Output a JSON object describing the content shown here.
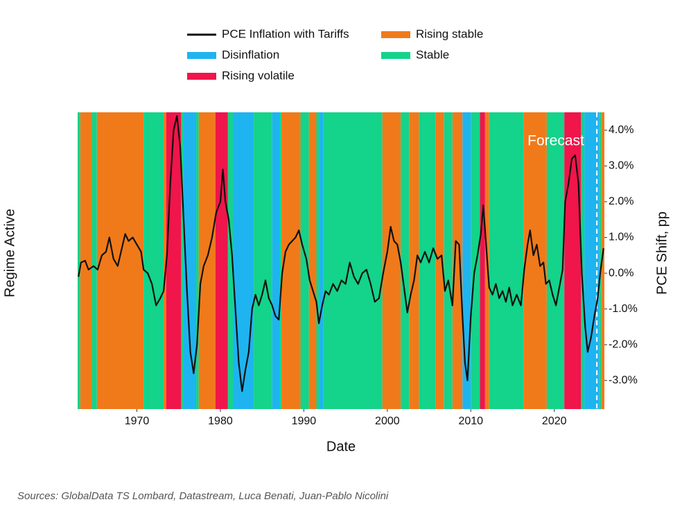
{
  "chart_data": {
    "type": "regime-line",
    "x_label": "Date",
    "y_label": "Regime Active",
    "y2_label": "PCE Shift, pp",
    "source": "Sources: GlobalData TS Lombard, Datastream, Luca Benati, Juan-Pablo Nicolini",
    "xlim": [
      1962.9,
      2026.0
    ],
    "xticks": [
      1970,
      1980,
      1990,
      2000,
      2010,
      2020
    ],
    "y2lim": [
      -3.8,
      4.5
    ],
    "y2ticks": [
      {
        "value": -3,
        "label": "-3.0%"
      },
      {
        "value": -2,
        "label": "-2.0%"
      },
      {
        "value": -1,
        "label": "-1.0%"
      },
      {
        "value": 0,
        "label": "0.0%"
      },
      {
        "value": 1,
        "label": "1.0%"
      },
      {
        "value": 2,
        "label": "2.0%"
      },
      {
        "value": 3,
        "label": "3.0%"
      },
      {
        "value": 4,
        "label": "4.0%"
      }
    ],
    "forecast": {
      "label": "Forecast",
      "x": 2025.1
    },
    "series": [
      {
        "name": "PCE Inflation with Tariffs",
        "color": "#111111",
        "axis": "y2",
        "x": [
          1963.0,
          1963.3,
          1963.8,
          1964.2,
          1964.8,
          1965.3,
          1965.8,
          1966.3,
          1966.7,
          1967.2,
          1967.7,
          1968.2,
          1968.6,
          1969.0,
          1969.5,
          1970.0,
          1970.5,
          1970.8,
          1971.3,
          1971.8,
          1972.3,
          1972.8,
          1973.2,
          1973.6,
          1974.0,
          1974.4,
          1974.8,
          1975.2,
          1975.6,
          1976.0,
          1976.4,
          1976.8,
          1977.2,
          1977.6,
          1978.0,
          1978.5,
          1979.0,
          1979.5,
          1980.0,
          1980.3,
          1980.6,
          1981.0,
          1981.4,
          1981.8,
          1982.2,
          1982.6,
          1983.0,
          1983.4,
          1983.8,
          1984.2,
          1984.6,
          1985.0,
          1985.4,
          1985.8,
          1986.2,
          1986.6,
          1987.0,
          1987.4,
          1987.8,
          1988.2,
          1988.6,
          1989.0,
          1989.4,
          1989.8,
          1990.3,
          1990.7,
          1991.1,
          1991.5,
          1991.8,
          1992.2,
          1992.6,
          1993.0,
          1993.5,
          1994.0,
          1994.5,
          1995.0,
          1995.5,
          1996.0,
          1996.5,
          1997.0,
          1997.5,
          1998.0,
          1998.5,
          1999.0,
          1999.5,
          2000.0,
          2000.4,
          2000.8,
          2001.2,
          2001.6,
          2002.0,
          2002.4,
          2002.8,
          2003.2,
          2003.6,
          2004.0,
          2004.5,
          2005.0,
          2005.5,
          2006.0,
          2006.5,
          2006.9,
          2007.3,
          2007.8,
          2008.2,
          2008.6,
          2009.0,
          2009.3,
          2009.6,
          2010.0,
          2010.4,
          2010.8,
          2011.2,
          2011.5,
          2011.8,
          2012.2,
          2012.6,
          2013.0,
          2013.4,
          2013.8,
          2014.2,
          2014.6,
          2015.0,
          2015.5,
          2016.0,
          2016.4,
          2016.8,
          2017.1,
          2017.5,
          2017.9,
          2018.3,
          2018.7,
          2019.0,
          2019.4,
          2019.8,
          2020.2,
          2020.6,
          2021.0,
          2021.3,
          2021.7,
          2022.1,
          2022.5,
          2022.9,
          2023.3,
          2023.7,
          2024.0,
          2024.4,
          2024.8,
          2025.2,
          2025.5,
          2025.9
        ],
        "values": [
          -0.1,
          0.3,
          0.35,
          0.1,
          0.2,
          0.1,
          0.5,
          0.6,
          1.0,
          0.4,
          0.2,
          0.7,
          1.1,
          0.9,
          1.0,
          0.8,
          0.6,
          0.1,
          0.0,
          -0.3,
          -0.9,
          -0.7,
          -0.5,
          0.5,
          2.5,
          4.0,
          4.4,
          3.5,
          1.5,
          -0.5,
          -2.2,
          -2.8,
          -2.0,
          -0.3,
          0.2,
          0.5,
          1.0,
          1.7,
          2.0,
          2.9,
          2.0,
          1.5,
          0.5,
          -1.0,
          -2.5,
          -3.3,
          -2.7,
          -2.2,
          -1.0,
          -0.6,
          -0.9,
          -0.6,
          -0.2,
          -0.7,
          -0.9,
          -1.2,
          -1.3,
          0.0,
          0.6,
          0.8,
          0.9,
          1.0,
          1.2,
          0.8,
          0.4,
          -0.2,
          -0.5,
          -0.8,
          -1.4,
          -0.9,
          -0.5,
          -0.6,
          -0.3,
          -0.5,
          -0.2,
          -0.3,
          0.3,
          -0.1,
          -0.3,
          0.0,
          0.1,
          -0.3,
          -0.8,
          -0.7,
          0.0,
          0.6,
          1.3,
          0.9,
          0.8,
          0.3,
          -0.4,
          -1.1,
          -0.6,
          -0.2,
          0.5,
          0.3,
          0.6,
          0.3,
          0.7,
          0.4,
          0.5,
          -0.5,
          -0.2,
          -0.9,
          0.9,
          0.8,
          -1.2,
          -2.5,
          -3.0,
          -1.2,
          0.0,
          0.5,
          1.1,
          1.9,
          0.9,
          -0.4,
          -0.6,
          -0.3,
          -0.7,
          -0.5,
          -0.8,
          -0.4,
          -0.9,
          -0.6,
          -0.9,
          0.1,
          0.8,
          1.2,
          0.5,
          0.8,
          0.2,
          0.3,
          -0.3,
          -0.2,
          -0.6,
          -0.9,
          -0.4,
          0.1,
          2.0,
          2.5,
          3.2,
          3.3,
          2.5,
          0.0,
          -1.5,
          -2.2,
          -1.8,
          -1.2,
          -0.7,
          0.0,
          0.7
        ]
      }
    ],
    "regimes": [
      {
        "name": "Rising stable",
        "color": "#f07a1a",
        "periods": [
          [
            1963.2,
            1963.4
          ],
          [
            1963.4,
            1964.6
          ],
          [
            1965.2,
            1970.8
          ],
          [
            1973.2,
            1973.5
          ],
          [
            1977.4,
            1979.4
          ],
          [
            1987.3,
            1989.6
          ],
          [
            1990.6,
            1991.5
          ],
          [
            1999.4,
            2001.6
          ],
          [
            2002.6,
            2003.8
          ],
          [
            2005.8,
            2006.8
          ],
          [
            2007.8,
            2009.0
          ],
          [
            2011.7,
            2012.2
          ],
          [
            2016.3,
            2019.1
          ],
          [
            2025.6,
            2026.0
          ]
        ]
      },
      {
        "name": "Disinflation",
        "color": "#1eb4f0",
        "periods": [
          [
            1975.6,
            1977.1
          ],
          [
            1981.5,
            1984.0
          ],
          [
            1986.2,
            1987.1
          ],
          [
            1991.8,
            1992.3
          ],
          [
            2009.0,
            2010.0
          ],
          [
            2023.6,
            2025.4
          ]
        ]
      },
      {
        "name": "Stable",
        "color": "#14d38a",
        "periods": [
          [
            1962.9,
            1963.2
          ],
          [
            1964.6,
            1965.2
          ],
          [
            1970.8,
            1973.2
          ],
          [
            1975.3,
            1975.6
          ],
          [
            1977.1,
            1977.4
          ],
          [
            1980.9,
            1981.5
          ],
          [
            1984.0,
            1986.2
          ],
          [
            1987.1,
            1987.3
          ],
          [
            1989.6,
            1990.6
          ],
          [
            1991.5,
            1991.8
          ],
          [
            1992.3,
            1999.4
          ],
          [
            2001.6,
            2002.6
          ],
          [
            2003.8,
            2005.8
          ],
          [
            2006.8,
            2007.8
          ],
          [
            2010.0,
            2011.1
          ],
          [
            2012.2,
            2016.3
          ],
          [
            2019.1,
            2021.2
          ],
          [
            2023.2,
            2023.6
          ],
          [
            2025.4,
            2025.6
          ]
        ]
      },
      {
        "name": "Rising volatile",
        "color": "#f0154a",
        "periods": [
          [
            1973.5,
            1975.3
          ],
          [
            1979.4,
            1980.9
          ],
          [
            2011.1,
            2011.7
          ],
          [
            2021.2,
            2023.2
          ]
        ]
      }
    ]
  }
}
